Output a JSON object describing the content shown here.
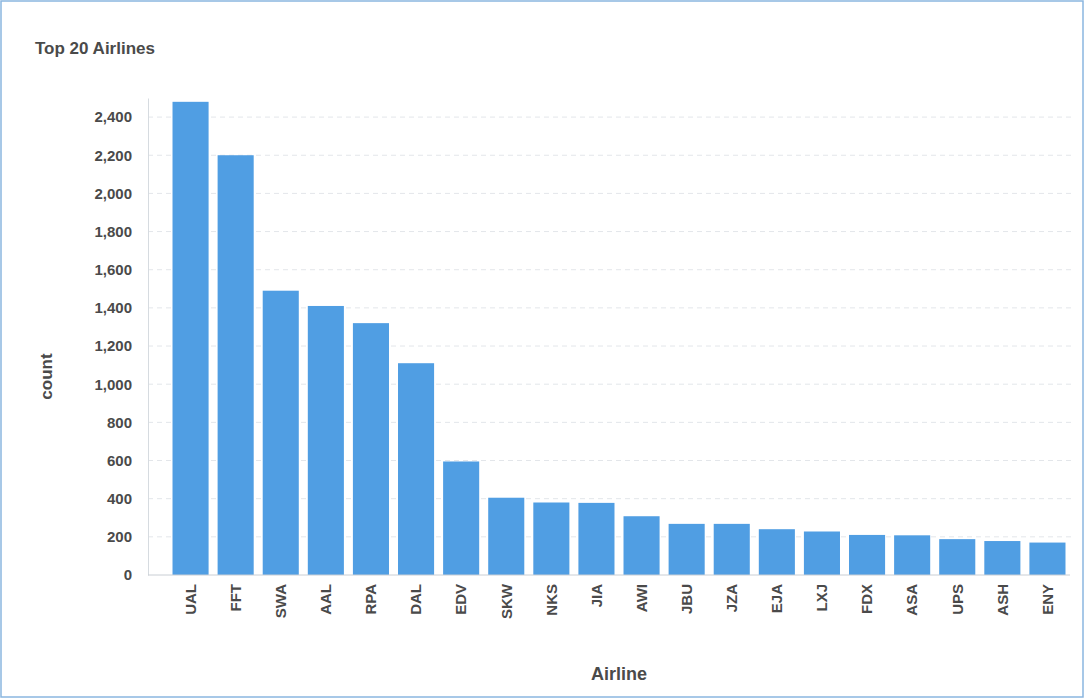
{
  "chart_data": {
    "type": "bar",
    "title": "Top 20 Airlines",
    "x_label": "Airline",
    "y_label": "count",
    "categories": [
      "UAL",
      "FFT",
      "SWA",
      "AAL",
      "RPA",
      "DAL",
      "EDV",
      "SKW",
      "NKS",
      "JIA",
      "AWI",
      "JBU",
      "JZA",
      "EJA",
      "LXJ",
      "FDX",
      "ASA",
      "UPS",
      "ASH",
      "ENY"
    ],
    "values": [
      2480,
      2200,
      1490,
      1410,
      1320,
      1110,
      595,
      405,
      380,
      378,
      308,
      268,
      268,
      240,
      228,
      210,
      208,
      188,
      178,
      170
    ],
    "color": "#509ee3",
    "ylim": [
      0,
      2500
    ],
    "yticks": [
      0,
      200,
      400,
      600,
      800,
      {
        "value": 1000,
        "label": "1,000"
      },
      {
        "value": 1200,
        "label": "1,200"
      },
      {
        "value": 1400,
        "label": "1,400"
      },
      {
        "value": 1600,
        "label": "1,600"
      },
      {
        "value": 1800,
        "label": "1,800"
      },
      {
        "value": 2000,
        "label": "2,000"
      },
      {
        "value": 2200,
        "label": "2,200"
      },
      {
        "value": 2400,
        "label": "2,400"
      }
    ],
    "grid": true
  }
}
